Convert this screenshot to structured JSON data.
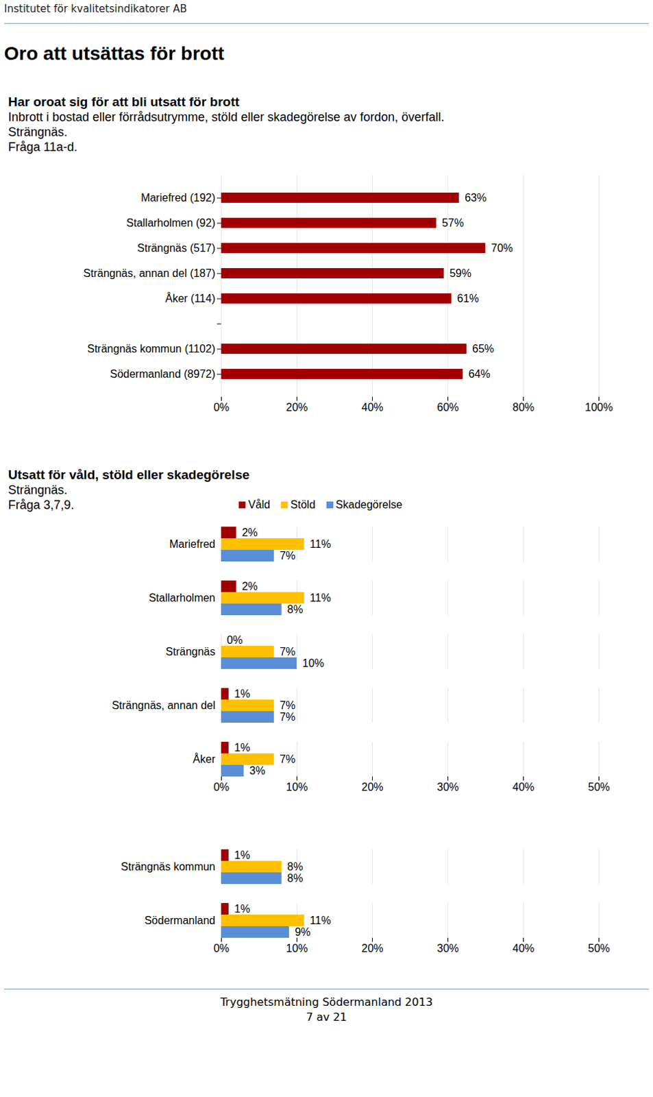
{
  "header": "Institutet för kvalitetsindikatorer AB",
  "page_title": "Oro att utsättas för brott",
  "footer": [
    "Trygghetsmätning Södermanland 2013",
    "7 av 21"
  ],
  "chart_data": [
    {
      "type": "bar",
      "orientation": "horizontal",
      "title": "Har oroat sig för att bli utsatt för brott",
      "subtitle": [
        "Inbrott i bostad eller förrådsutrymme, stöld eller skadegörelse av fordon, överfall.",
        "Strängnäs.",
        "Fråga 11a-d."
      ],
      "categories": [
        "Mariefred (192)",
        "Stallarholmen (92)",
        "Strängnäs (517)",
        "Strängnäs, annan del (187)",
        "Åker (114)",
        null,
        "Strängnäs kommun (1102)",
        "Södermanland (8972)"
      ],
      "values": [
        63,
        57,
        70,
        59,
        61,
        null,
        65,
        64
      ],
      "value_labels": [
        "63%",
        "57%",
        "70%",
        "59%",
        "61%",
        null,
        "65%",
        "64%"
      ],
      "data_labels": true,
      "color": "#a00000",
      "xlim": [
        0,
        100
      ],
      "xticks": [
        {
          "value": 0,
          "label": "0%"
        },
        {
          "value": 20,
          "label": "20%"
        },
        {
          "value": 40,
          "label": "40%"
        },
        {
          "value": 60,
          "label": "60%"
        },
        {
          "value": 80,
          "label": "80%"
        },
        {
          "value": 100,
          "label": "100%"
        }
      ],
      "grid": true
    },
    {
      "type": "bar",
      "orientation": "horizontal",
      "title": "Utsatt för våld, stöld eller skadegörelse",
      "subtitle": [
        "Strängnäs.",
        "Fråga 3,7,9."
      ],
      "categories": [
        "Mariefred",
        "Stallarholmen",
        "Strängnäs",
        "Strängnäs, annan del",
        "Åker",
        null,
        "Strängnäs kommun",
        "Södermanland"
      ],
      "series": [
        {
          "name": "Våld",
          "color": "#a00000",
          "values": [
            2,
            2,
            0,
            1,
            1,
            null,
            1,
            1
          ],
          "value_labels": [
            "2%",
            "2%",
            "0%",
            "1%",
            "1%",
            null,
            "1%",
            "1%"
          ]
        },
        {
          "name": "Stöld",
          "color": "#ffc000",
          "values": [
            11,
            11,
            7,
            7,
            7,
            null,
            8,
            11
          ],
          "value_labels": [
            "11%",
            "11%",
            "7%",
            "7%",
            "7%",
            null,
            "8%",
            "11%"
          ]
        },
        {
          "name": "Skadegörelse",
          "color": "#5a8ed6",
          "values": [
            7,
            8,
            10,
            7,
            3,
            null,
            8,
            9
          ],
          "value_labels": [
            "7%",
            "8%",
            "10%",
            "7%",
            "3%",
            null,
            "8%",
            "9%"
          ]
        }
      ],
      "data_labels": true,
      "legend": "top",
      "xlim": [
        0,
        50
      ],
      "xticks": [
        {
          "value": 0,
          "label": "0%"
        },
        {
          "value": 10,
          "label": "10%"
        },
        {
          "value": 20,
          "label": "20%"
        },
        {
          "value": 30,
          "label": "30%"
        },
        {
          "value": 40,
          "label": "40%"
        },
        {
          "value": 50,
          "label": "50%"
        }
      ],
      "grid": true
    }
  ]
}
